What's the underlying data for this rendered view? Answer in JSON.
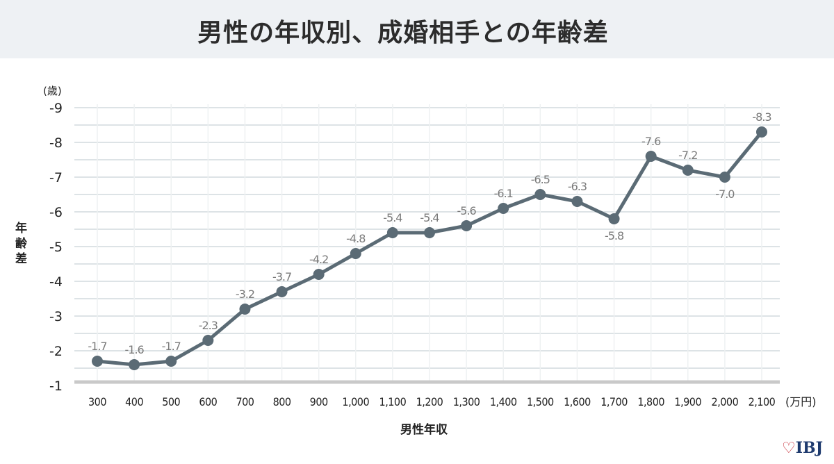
{
  "title": "男性の年収別、成婚相手との年齢差",
  "logo": "IBJ",
  "colors": {
    "line": "#5b6b75",
    "grid": "#dde3e6",
    "header_bg": "#eef1f4",
    "label": "#7a7a7a"
  },
  "chart_data": {
    "type": "line",
    "title": "男性の年収別、成婚相手との年齢差",
    "xlabel": "男性年収",
    "ylabel": "年齢差",
    "x_unit": "(万円)",
    "y_unit": "(歳)",
    "categories": [
      "300",
      "400",
      "500",
      "600",
      "700",
      "800",
      "900",
      "1,000",
      "1,100",
      "1,200",
      "1,300",
      "1,400",
      "1,500",
      "1,600",
      "1,700",
      "1,800",
      "1,900",
      "2,000",
      "2,100"
    ],
    "values": [
      -1.7,
      -1.6,
      -1.7,
      -2.3,
      -3.2,
      -3.7,
      -4.2,
      -4.8,
      -5.4,
      -5.4,
      -5.6,
      -6.1,
      -6.5,
      -6.3,
      -5.8,
      -7.6,
      -7.2,
      -7.0,
      -8.3
    ],
    "data_labels": [
      "-1.7",
      "-1.6",
      "-1.7",
      "-2.3",
      "-3.2",
      "-3.7",
      "-4.2",
      "-4.8",
      "-5.4",
      "-5.4",
      "-5.6",
      "-6.1",
      "-6.5",
      "-6.3",
      "-5.8",
      "-7.6",
      "-7.2",
      "-7.0",
      "-8.3"
    ],
    "label_below": [
      false,
      false,
      false,
      false,
      false,
      false,
      false,
      false,
      false,
      false,
      false,
      false,
      false,
      false,
      true,
      false,
      false,
      true,
      false
    ],
    "yticks": [
      "-1",
      "-2",
      "-3",
      "-4",
      "-5",
      "-6",
      "-7",
      "-8",
      "-9"
    ],
    "ylim": [
      -1,
      -9
    ],
    "y_inverted": true,
    "grid": true,
    "legend": "none"
  }
}
